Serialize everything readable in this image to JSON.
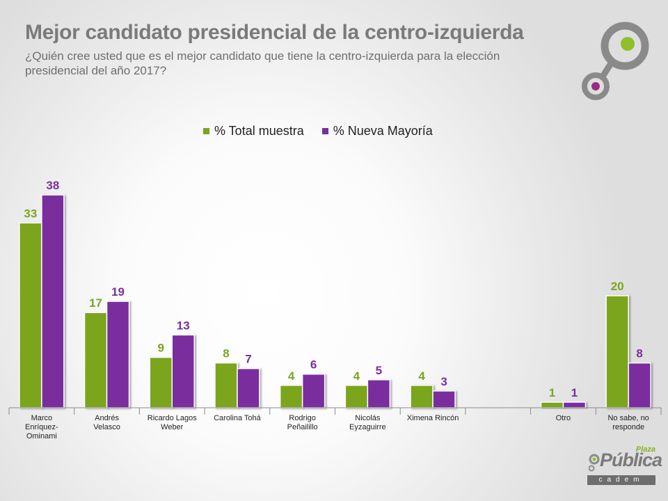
{
  "header": {
    "title": "Mejor candidato presidencial de la centro-izquierda",
    "subtitle": "¿Quién cree usted que es el mejor candidato que tiene la centro-izquierda para la elección presidencial del año 2017?"
  },
  "brand": {
    "script": "Plaza",
    "main": "Pública",
    "sub": "cadem"
  },
  "colors": {
    "total": "#7aa51e",
    "nueva": "#7a2e9e",
    "axis": "#8a8a8a"
  },
  "chart_data": {
    "type": "bar",
    "title": "",
    "xlabel": "",
    "ylabel": "",
    "ylim": [
      0,
      40
    ],
    "legend_position": "top-center",
    "grid": false,
    "categories": [
      "Marco Enríquez-Ominami",
      "Andrés Velasco",
      "Ricardo Lagos Weber",
      "Carolina Tohá",
      "Rodrigo Peñailillo",
      "Nicolás Eyzaguirre",
      "Ximena Rincón",
      "",
      "Otro",
      "No sabe, no responde"
    ],
    "series": [
      {
        "name": "% Total muestra",
        "values": [
          33,
          17,
          9,
          8,
          4,
          4,
          4,
          null,
          1,
          20
        ]
      },
      {
        "name": "% Nueva Mayoría",
        "values": [
          38,
          19,
          13,
          7,
          6,
          5,
          3,
          null,
          1,
          8
        ]
      }
    ]
  }
}
